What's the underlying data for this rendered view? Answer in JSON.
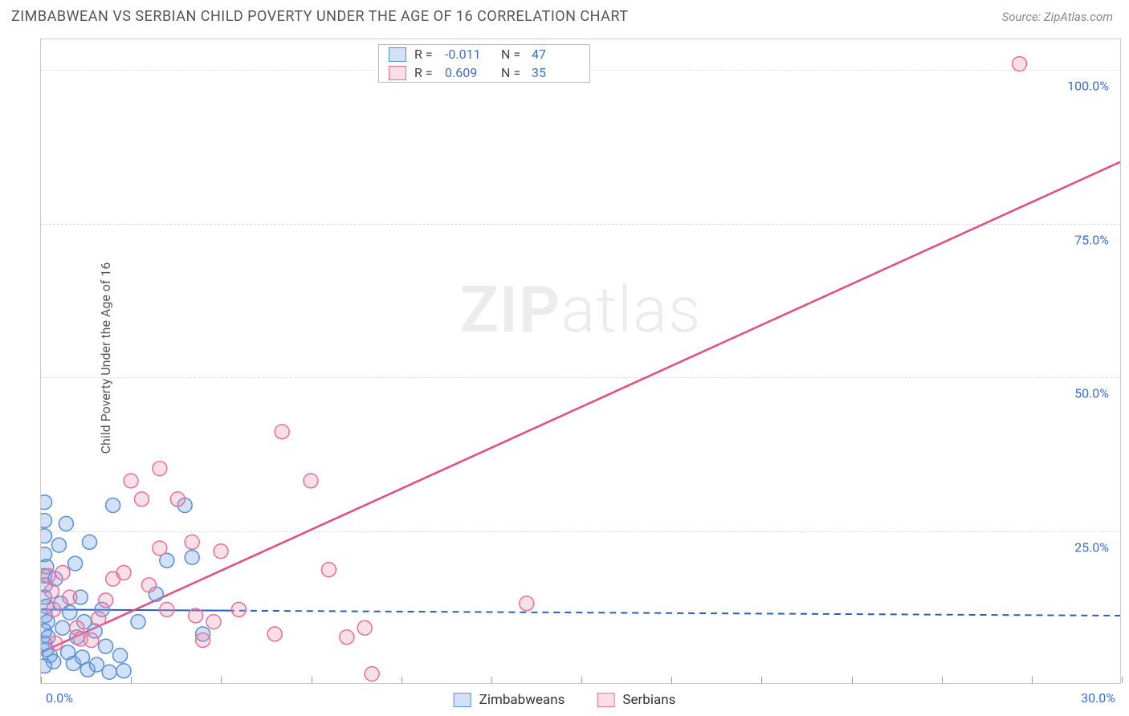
{
  "title": "ZIMBABWEAN VS SERBIAN CHILD POVERTY UNDER THE AGE OF 16 CORRELATION CHART",
  "source_label": "Source: ZipAtlas.com",
  "y_axis_label": "Child Poverty Under the Age of 16",
  "watermark_a": "ZIP",
  "watermark_b": "atlas",
  "chart": {
    "type": "scatter",
    "background_color": "#ffffff",
    "grid_color": "#dddddd",
    "border_color": "#cccccc",
    "xlim": [
      0,
      30
    ],
    "ylim": [
      0,
      105
    ],
    "x_ticks": [
      0,
      2.5,
      5,
      7.5,
      10,
      12.5,
      15,
      17.5,
      20,
      22.5,
      25,
      27.5,
      30
    ],
    "x_tick_labels": {
      "0": "0.0%",
      "30": "30.0%"
    },
    "y_ticks": [
      25,
      50,
      75,
      100
    ],
    "y_tick_labels": {
      "25": "25.0%",
      "50": "50.0%",
      "75": "75.0%",
      "100": "100.0%"
    },
    "tick_label_color": "#3a6fd8",
    "tick_label_fontsize": 16,
    "series": [
      {
        "name": "Zimbabweans",
        "color_fill": "rgba(122,168,232,0.35)",
        "color_stroke": "#5a8ed8",
        "marker_radius": 9,
        "R": "-0.011",
        "N": "47",
        "trend": {
          "x1": 0,
          "y1": 12.0,
          "x2": 30,
          "y2": 11.0,
          "dash_after_x": 5.2,
          "color": "#2a5fb8",
          "width": 2
        },
        "points": [
          [
            0.1,
            29.5
          ],
          [
            0.1,
            26.5
          ],
          [
            0.1,
            24
          ],
          [
            0.1,
            21
          ],
          [
            0.15,
            19
          ],
          [
            0.1,
            17.5
          ],
          [
            0.12,
            16
          ],
          [
            0.1,
            14
          ],
          [
            0.15,
            12.5
          ],
          [
            0.12,
            11
          ],
          [
            0.18,
            10
          ],
          [
            0.1,
            8.5
          ],
          [
            0.2,
            7.5
          ],
          [
            0.1,
            6.5
          ],
          [
            0.15,
            5.5
          ],
          [
            0.25,
            4.5
          ],
          [
            0.35,
            3.5
          ],
          [
            0.1,
            2.8
          ],
          [
            0.4,
            17
          ],
          [
            0.5,
            22.5
          ],
          [
            0.55,
            13
          ],
          [
            0.6,
            9
          ],
          [
            0.7,
            26
          ],
          [
            0.75,
            5
          ],
          [
            0.8,
            11.5
          ],
          [
            0.9,
            3.2
          ],
          [
            0.95,
            19.5
          ],
          [
            1.0,
            7.5
          ],
          [
            1.1,
            14
          ],
          [
            1.15,
            4.2
          ],
          [
            1.2,
            10
          ],
          [
            1.3,
            2.2
          ],
          [
            1.35,
            23
          ],
          [
            1.5,
            8.5
          ],
          [
            1.55,
            3.0
          ],
          [
            1.7,
            12
          ],
          [
            1.8,
            6
          ],
          [
            1.9,
            1.8
          ],
          [
            2.0,
            29
          ],
          [
            2.2,
            4.5
          ],
          [
            2.3,
            2.0
          ],
          [
            2.7,
            10
          ],
          [
            3.2,
            14.5
          ],
          [
            3.5,
            20
          ],
          [
            4.0,
            29
          ],
          [
            4.2,
            20.5
          ],
          [
            4.5,
            8
          ]
        ]
      },
      {
        "name": "Serbians",
        "color_fill": "rgba(240,140,168,0.28)",
        "color_stroke": "#e86f9a",
        "marker_radius": 9,
        "R": "0.609",
        "N": "35",
        "trend": {
          "x1": 0,
          "y1": 5.0,
          "x2": 30,
          "y2": 85.0,
          "color": "#e84a80",
          "width": 2.5
        },
        "points": [
          [
            0.2,
            17.5
          ],
          [
            0.3,
            15
          ],
          [
            0.35,
            12
          ],
          [
            0.4,
            6.5
          ],
          [
            0.6,
            18
          ],
          [
            0.8,
            14
          ],
          [
            1.0,
            9
          ],
          [
            1.1,
            7.2
          ],
          [
            1.4,
            7
          ],
          [
            1.6,
            10.5
          ],
          [
            1.8,
            13.5
          ],
          [
            2.0,
            17
          ],
          [
            2.3,
            18
          ],
          [
            2.5,
            33
          ],
          [
            2.8,
            30
          ],
          [
            3.0,
            16
          ],
          [
            3.3,
            35
          ],
          [
            3.3,
            22
          ],
          [
            3.5,
            12
          ],
          [
            3.8,
            30
          ],
          [
            4.2,
            23
          ],
          [
            4.3,
            11
          ],
          [
            4.5,
            7
          ],
          [
            4.8,
            10
          ],
          [
            5.0,
            21.5
          ],
          [
            5.5,
            12
          ],
          [
            6.5,
            8
          ],
          [
            6.7,
            41
          ],
          [
            7.5,
            33
          ],
          [
            8.0,
            18.5
          ],
          [
            8.5,
            7.5
          ],
          [
            9.0,
            9
          ],
          [
            9.2,
            1.5
          ],
          [
            13.5,
            13
          ],
          [
            27.2,
            101
          ]
        ]
      }
    ]
  },
  "legend_top": {
    "rows": [
      {
        "swatch_fill": "rgba(122,168,232,0.35)",
        "swatch_stroke": "#5a8ed8",
        "r_label": "R =",
        "r_val": "-0.011",
        "n_label": "N =",
        "n_val": "47"
      },
      {
        "swatch_fill": "rgba(240,140,168,0.28)",
        "swatch_stroke": "#e86f9a",
        "r_label": "R =",
        "r_val": "0.609",
        "n_label": "N =",
        "n_val": "35"
      }
    ]
  },
  "legend_bottom": {
    "items": [
      {
        "swatch_fill": "rgba(122,168,232,0.35)",
        "swatch_stroke": "#5a8ed8",
        "label": "Zimbabweans"
      },
      {
        "swatch_fill": "rgba(240,140,168,0.28)",
        "swatch_stroke": "#e86f9a",
        "label": "Serbians"
      }
    ]
  }
}
